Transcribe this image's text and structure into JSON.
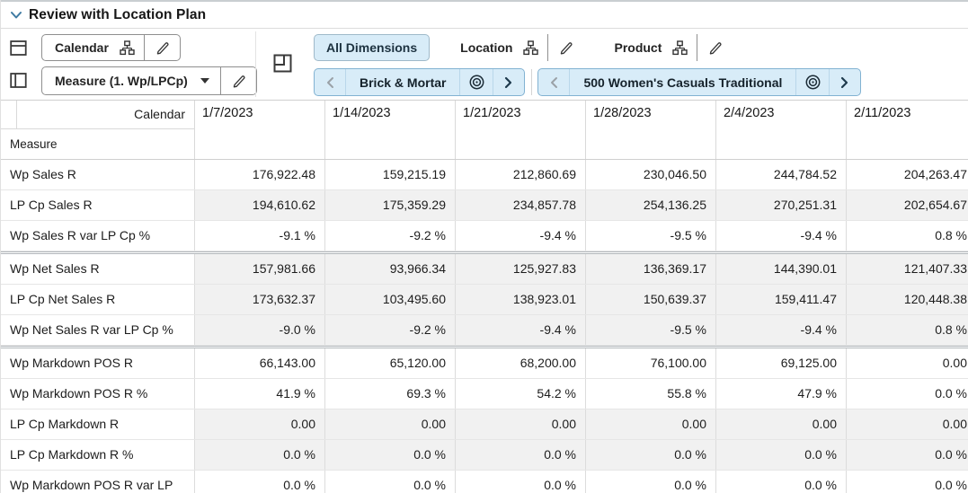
{
  "title": "Review with Location Plan",
  "toolbar": {
    "row_axis_button": {
      "label": "Calendar"
    },
    "col_axis_button": {
      "label": "Measure (1. Wp/LPCp)"
    },
    "tabs": [
      {
        "label": "All Dimensions",
        "active": true
      },
      {
        "label": "Location",
        "active": false
      },
      {
        "label": "Product",
        "active": false
      }
    ],
    "page_edge_tiles": [
      {
        "label": "Brick & Mortar"
      },
      {
        "label": "500 Women's Casuals Traditional"
      }
    ]
  },
  "table": {
    "column_axis_label": "Calendar",
    "row_axis_label": "Measure",
    "columns": [
      "1/7/2023",
      "1/14/2023",
      "1/21/2023",
      "1/28/2023",
      "2/4/2023",
      "2/11/2023"
    ],
    "rows": [
      {
        "label": "Wp Sales R",
        "shaded": false,
        "group_start": false,
        "values": [
          "176,922.48",
          "159,215.19",
          "212,860.69",
          "230,046.50",
          "244,784.52",
          "204,263.47"
        ]
      },
      {
        "label": "LP Cp Sales R",
        "shaded": true,
        "group_start": false,
        "values": [
          "194,610.62",
          "175,359.29",
          "234,857.78",
          "254,136.25",
          "270,251.31",
          "202,654.67"
        ]
      },
      {
        "label": "Wp Sales R var LP Cp %",
        "shaded": false,
        "group_start": false,
        "values": [
          "-9.1 %",
          "-9.2 %",
          "-9.4 %",
          "-9.5 %",
          "-9.4 %",
          "0.8 %"
        ]
      },
      {
        "label": "Wp Net Sales R",
        "shaded": true,
        "group_start": true,
        "values": [
          "157,981.66",
          "93,966.34",
          "125,927.83",
          "136,369.17",
          "144,390.01",
          "121,407.33"
        ]
      },
      {
        "label": "LP Cp Net Sales R",
        "shaded": true,
        "group_start": false,
        "values": [
          "173,632.37",
          "103,495.60",
          "138,923.01",
          "150,639.37",
          "159,411.47",
          "120,448.38"
        ]
      },
      {
        "label": "Wp Net Sales R var LP Cp %",
        "shaded": true,
        "group_start": false,
        "values": [
          "-9.0 %",
          "-9.2 %",
          "-9.4 %",
          "-9.5 %",
          "-9.4 %",
          "0.8 %"
        ]
      },
      {
        "label": "Wp Markdown POS R",
        "shaded": false,
        "group_start": true,
        "values": [
          "66,143.00",
          "65,120.00",
          "68,200.00",
          "76,100.00",
          "69,125.00",
          "0.00"
        ]
      },
      {
        "label": "Wp Markdown POS R %",
        "shaded": false,
        "group_start": false,
        "values": [
          "41.9 %",
          "69.3 %",
          "54.2 %",
          "55.8 %",
          "47.9 %",
          "0.0 %"
        ]
      },
      {
        "label": "LP Cp Markdown R",
        "shaded": true,
        "group_start": false,
        "values": [
          "0.00",
          "0.00",
          "0.00",
          "0.00",
          "0.00",
          "0.00"
        ]
      },
      {
        "label": "LP Cp Markdown R %",
        "shaded": true,
        "group_start": false,
        "values": [
          "0.0 %",
          "0.0 %",
          "0.0 %",
          "0.0 %",
          "0.0 %",
          "0.0 %"
        ]
      },
      {
        "label": "Wp Markdown POS R var LP",
        "shaded": false,
        "group_start": false,
        "values": [
          "0.0 %",
          "0.0 %",
          "0.0 %",
          "0.0 %",
          "0.0 %",
          "0.0 %"
        ]
      }
    ]
  },
  "colors": {
    "accent_fill": "#d8ecf8",
    "accent_border": "#82b2d2",
    "shaded_cell": "#f1f1f1",
    "title_chevron": "#3e7aa2"
  }
}
